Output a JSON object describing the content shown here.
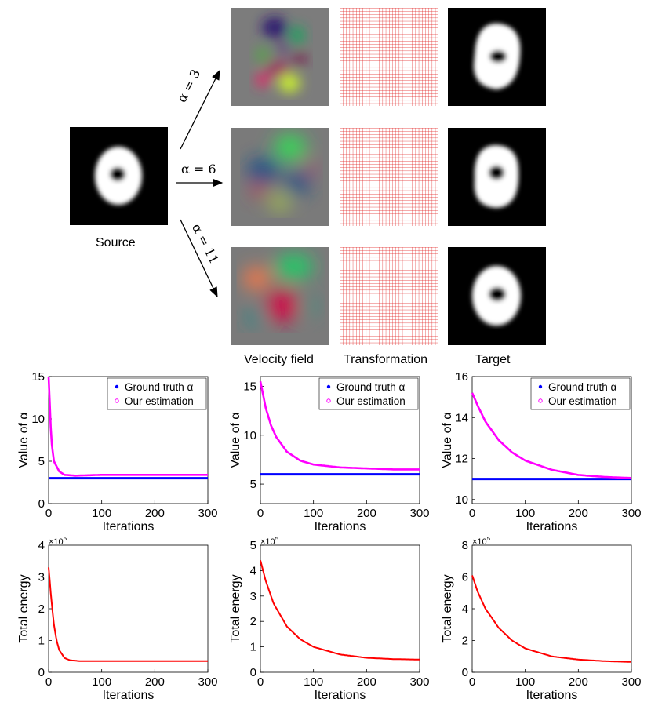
{
  "labels": {
    "source": "Source",
    "velocity_field": "Velocity field",
    "transformation": "Transformation",
    "target": "Target"
  },
  "alphas": [
    "α = 3",
    "α = 6",
    "α = 11"
  ],
  "colors": {
    "ground_truth": "#0000ff",
    "estimation": "#ff00ff",
    "energy": "#ff0000",
    "grid": "#e01818"
  },
  "chart_data": [
    {
      "type": "line",
      "xlabel": "Iterations",
      "ylabel": "Value of α",
      "xlim": [
        0,
        300
      ],
      "ylim": [
        0,
        15
      ],
      "xticks": [
        "0",
        "100",
        "200",
        "300"
      ],
      "yticks": [
        "0",
        "5",
        "10",
        "15"
      ],
      "legend": [
        "Ground truth α",
        "Our estimation"
      ],
      "legend_position": "top-right",
      "ground_truth": 3,
      "estimation": {
        "x": [
          0,
          5,
          10,
          20,
          30,
          50,
          100,
          200,
          300
        ],
        "y": [
          15,
          7.5,
          5,
          3.8,
          3.4,
          3.3,
          3.4,
          3.4,
          3.4
        ]
      }
    },
    {
      "type": "line",
      "xlabel": "Iterations",
      "ylabel": "Value of α",
      "xlim": [
        0,
        300
      ],
      "ylim": [
        3,
        16
      ],
      "xticks": [
        "0",
        "100",
        "200",
        "300"
      ],
      "yticks": [
        "5",
        "10",
        "15"
      ],
      "legend": [
        "Ground truth α",
        "Our estimation"
      ],
      "legend_position": "top-right",
      "ground_truth": 6,
      "estimation": {
        "x": [
          0,
          10,
          20,
          30,
          50,
          75,
          100,
          150,
          200,
          250,
          300
        ],
        "y": [
          15.5,
          12.8,
          11,
          9.8,
          8.3,
          7.4,
          7.0,
          6.7,
          6.6,
          6.5,
          6.5
        ]
      }
    },
    {
      "type": "line",
      "xlabel": "Iterations",
      "ylabel": "Value of α",
      "xlim": [
        0,
        300
      ],
      "ylim": [
        9.8,
        16
      ],
      "xticks": [
        "0",
        "100",
        "200",
        "300"
      ],
      "yticks": [
        "10",
        "12",
        "14",
        "16"
      ],
      "legend": [
        "Ground truth α",
        "Our estimation"
      ],
      "legend_position": "top-right",
      "ground_truth": 11,
      "estimation": {
        "x": [
          0,
          10,
          25,
          50,
          75,
          100,
          150,
          200,
          250,
          300
        ],
        "y": [
          15.2,
          14.6,
          13.8,
          12.9,
          12.3,
          11.9,
          11.45,
          11.2,
          11.1,
          11.05
        ]
      }
    },
    {
      "type": "line",
      "xlabel": "Iterations",
      "ylabel": "Total energy",
      "multiplier": "×10",
      "exponent": "5",
      "xlim": [
        0,
        300
      ],
      "ylim": [
        0,
        4
      ],
      "xticks": [
        "0",
        "100",
        "200",
        "300"
      ],
      "yticks": [
        "0",
        "1",
        "2",
        "3",
        "4"
      ],
      "energy": {
        "x": [
          0,
          5,
          10,
          15,
          20,
          30,
          40,
          60,
          100,
          200,
          300
        ],
        "y": [
          3.3,
          2.3,
          1.5,
          1.0,
          0.7,
          0.45,
          0.38,
          0.35,
          0.35,
          0.35,
          0.35
        ]
      }
    },
    {
      "type": "line",
      "xlabel": "Iterations",
      "ylabel": "Total energy",
      "multiplier": "×10",
      "exponent": "5",
      "xlim": [
        0,
        300
      ],
      "ylim": [
        0,
        5
      ],
      "xticks": [
        "0",
        "100",
        "200",
        "300"
      ],
      "yticks": [
        "0",
        "1",
        "2",
        "3",
        "4",
        "5"
      ],
      "energy": {
        "x": [
          0,
          10,
          25,
          50,
          75,
          100,
          150,
          200,
          250,
          300
        ],
        "y": [
          4.4,
          3.6,
          2.7,
          1.8,
          1.3,
          1.0,
          0.7,
          0.57,
          0.52,
          0.5
        ]
      }
    },
    {
      "type": "line",
      "xlabel": "Iterations",
      "ylabel": "Total energy",
      "multiplier": "×10",
      "exponent": "5",
      "xlim": [
        0,
        300
      ],
      "ylim": [
        0,
        8
      ],
      "xticks": [
        "0",
        "100",
        "200",
        "300"
      ],
      "yticks": [
        "0",
        "2",
        "4",
        "6",
        "8"
      ],
      "energy": {
        "x": [
          0,
          10,
          25,
          50,
          75,
          100,
          150,
          200,
          250,
          300
        ],
        "y": [
          6.1,
          5.1,
          4.0,
          2.8,
          2.0,
          1.5,
          1.0,
          0.8,
          0.7,
          0.65
        ]
      }
    }
  ]
}
